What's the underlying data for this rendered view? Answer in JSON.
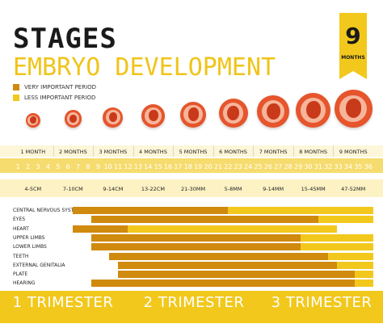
{
  "title": "STAGES",
  "subtitle": "EMBRYO DEVELOPMENT",
  "badge": {
    "number": "9",
    "label": "MONTHS"
  },
  "legend": [
    {
      "label": "VERY IMPORTANT PERIOD",
      "color": "#d08a0e"
    },
    {
      "label": "LESS IMPORTANT PERIOD",
      "color": "#f2c81c"
    }
  ],
  "colors": {
    "dark": "#d08a0e",
    "light": "#f2c81c",
    "band": "#f6dc6e",
    "band_dark": "#f1c41a",
    "embryo": "#e6552c"
  },
  "chart_data": {
    "type": "timeline",
    "weeks": [
      "1",
      "2",
      "3",
      "4",
      "5",
      "6",
      "7",
      "8",
      "9",
      "10",
      "11",
      "12",
      "13",
      "14",
      "15",
      "16",
      "17",
      "18",
      "19",
      "20",
      "21",
      "22",
      "23",
      "24",
      "25",
      "26",
      "27",
      "28",
      "29",
      "30",
      "31",
      "32",
      "33",
      "34",
      "35",
      "36"
    ],
    "months": [
      {
        "label": "1 MONTH",
        "size": "4-5CM"
      },
      {
        "label": "2 MONTHS",
        "size": "7-10CM"
      },
      {
        "label": "3 MONTHS",
        "size": "9-14CM"
      },
      {
        "label": "4 MONTHS",
        "size": "13-22CM"
      },
      {
        "label": "5 MONTHS",
        "size": "21-30MM"
      },
      {
        "label": "6 MONTHS",
        "size": "5-8MM"
      },
      {
        "label": "7 MONTHS",
        "size": "9-14MM"
      },
      {
        "label": "8 MONTHS",
        "size": "15-45MM"
      },
      {
        "label": "9 MONTHS",
        "size": "47-52MM"
      }
    ],
    "organs": [
      {
        "name": "CENTRAL  NERVOUS SYSTEM",
        "very": [
          3,
          20
        ],
        "less": [
          20,
          36
        ]
      },
      {
        "name": "EYES",
        "very": [
          5,
          30
        ],
        "less": [
          30,
          36
        ]
      },
      {
        "name": "HEART",
        "very": [
          3,
          9
        ],
        "less": [
          9,
          32
        ]
      },
      {
        "name": "UPPER LIMBS",
        "very": [
          5,
          28
        ],
        "less": [
          28,
          36
        ]
      },
      {
        "name": "LOWER LIMBS",
        "very": [
          5,
          28
        ],
        "less": [
          28,
          36
        ]
      },
      {
        "name": "TEETH",
        "very": [
          7,
          31
        ],
        "less": [
          31,
          36
        ]
      },
      {
        "name": "EXTERNAL GENITALIA",
        "very": [
          8,
          32
        ],
        "less": [
          32,
          36
        ]
      },
      {
        "name": "PLATE",
        "very": [
          8,
          34
        ],
        "less": [
          34,
          36
        ]
      },
      {
        "name": "HEARING",
        "very": [
          5,
          34
        ],
        "less": [
          34,
          36
        ]
      }
    ],
    "trimesters": [
      "1 TRIMESTER",
      "2 TRIMESTER",
      "3 TRIMESTER"
    ]
  }
}
